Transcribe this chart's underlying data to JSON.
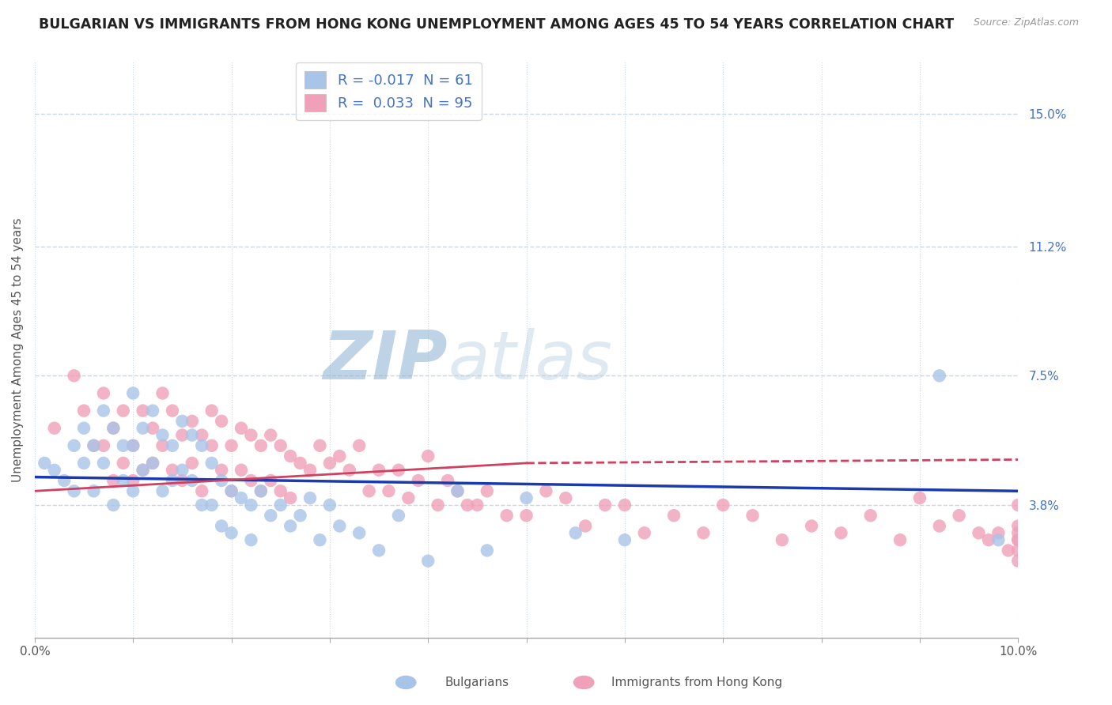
{
  "title": "BULGARIAN VS IMMIGRANTS FROM HONG KONG UNEMPLOYMENT AMONG AGES 45 TO 54 YEARS CORRELATION CHART",
  "source": "Source: ZipAtlas.com",
  "ylabel": "Unemployment Among Ages 45 to 54 years",
  "xlim": [
    0.0,
    0.1
  ],
  "ylim": [
    0.0,
    0.165
  ],
  "yticks": [
    0.038,
    0.075,
    0.112,
    0.15
  ],
  "ytick_labels": [
    "3.8%",
    "7.5%",
    "11.2%",
    "15.0%"
  ],
  "xtick_positions": [
    0.0,
    0.01,
    0.02,
    0.03,
    0.04,
    0.05,
    0.06,
    0.07,
    0.08,
    0.09,
    0.1
  ],
  "xtick_labels": [
    "0.0%",
    "",
    "",
    "",
    "",
    "",
    "",
    "",
    "",
    "",
    "10.0%"
  ],
  "bulgarian_color": "#a8c4e8",
  "hk_color": "#f0a0b8",
  "trend_bulgarian_color": "#1a3aad",
  "trend_hk_color": "#d04060",
  "legend_r_bulgarian": "-0.017",
  "legend_n_bulgarian": "61",
  "legend_r_hk": "0.033",
  "legend_n_hk": "95",
  "watermark_zip": "ZIP",
  "watermark_atlas": "atlas",
  "background_color": "#ffffff",
  "grid_color": "#c8d8e8",
  "title_fontsize": 12.5,
  "axis_label_fontsize": 11,
  "tick_fontsize": 11,
  "bulgarian_x": [
    0.001,
    0.002,
    0.003,
    0.004,
    0.004,
    0.005,
    0.005,
    0.006,
    0.006,
    0.007,
    0.007,
    0.008,
    0.008,
    0.009,
    0.009,
    0.01,
    0.01,
    0.01,
    0.011,
    0.011,
    0.012,
    0.012,
    0.013,
    0.013,
    0.014,
    0.014,
    0.015,
    0.015,
    0.016,
    0.016,
    0.017,
    0.017,
    0.018,
    0.018,
    0.019,
    0.019,
    0.02,
    0.02,
    0.021,
    0.022,
    0.022,
    0.023,
    0.024,
    0.025,
    0.026,
    0.027,
    0.028,
    0.029,
    0.03,
    0.031,
    0.033,
    0.035,
    0.037,
    0.04,
    0.043,
    0.046,
    0.05,
    0.055,
    0.06,
    0.092,
    0.098
  ],
  "bulgarian_y": [
    0.05,
    0.048,
    0.045,
    0.055,
    0.042,
    0.06,
    0.05,
    0.055,
    0.042,
    0.065,
    0.05,
    0.06,
    0.038,
    0.055,
    0.045,
    0.07,
    0.055,
    0.042,
    0.06,
    0.048,
    0.065,
    0.05,
    0.058,
    0.042,
    0.055,
    0.045,
    0.062,
    0.048,
    0.058,
    0.045,
    0.055,
    0.038,
    0.05,
    0.038,
    0.045,
    0.032,
    0.042,
    0.03,
    0.04,
    0.038,
    0.028,
    0.042,
    0.035,
    0.038,
    0.032,
    0.035,
    0.04,
    0.028,
    0.038,
    0.032,
    0.03,
    0.025,
    0.035,
    0.022,
    0.042,
    0.025,
    0.04,
    0.03,
    0.028,
    0.075,
    0.028
  ],
  "hk_x": [
    0.002,
    0.004,
    0.005,
    0.006,
    0.007,
    0.007,
    0.008,
    0.008,
    0.009,
    0.009,
    0.01,
    0.01,
    0.011,
    0.011,
    0.012,
    0.012,
    0.013,
    0.013,
    0.014,
    0.014,
    0.015,
    0.015,
    0.016,
    0.016,
    0.017,
    0.017,
    0.018,
    0.018,
    0.019,
    0.019,
    0.02,
    0.02,
    0.021,
    0.021,
    0.022,
    0.022,
    0.023,
    0.023,
    0.024,
    0.024,
    0.025,
    0.025,
    0.026,
    0.026,
    0.027,
    0.028,
    0.029,
    0.03,
    0.031,
    0.032,
    0.033,
    0.034,
    0.035,
    0.036,
    0.037,
    0.038,
    0.039,
    0.04,
    0.041,
    0.042,
    0.043,
    0.044,
    0.045,
    0.046,
    0.048,
    0.05,
    0.052,
    0.054,
    0.056,
    0.058,
    0.06,
    0.062,
    0.065,
    0.068,
    0.07,
    0.073,
    0.076,
    0.079,
    0.082,
    0.085,
    0.088,
    0.09,
    0.092,
    0.094,
    0.096,
    0.097,
    0.098,
    0.099,
    0.1,
    0.1,
    0.1,
    0.1,
    0.1,
    0.1,
    0.1
  ],
  "hk_y": [
    0.06,
    0.075,
    0.065,
    0.055,
    0.07,
    0.055,
    0.06,
    0.045,
    0.065,
    0.05,
    0.055,
    0.045,
    0.065,
    0.048,
    0.06,
    0.05,
    0.07,
    0.055,
    0.065,
    0.048,
    0.058,
    0.045,
    0.062,
    0.05,
    0.058,
    0.042,
    0.065,
    0.055,
    0.062,
    0.048,
    0.055,
    0.042,
    0.06,
    0.048,
    0.058,
    0.045,
    0.055,
    0.042,
    0.058,
    0.045,
    0.055,
    0.042,
    0.052,
    0.04,
    0.05,
    0.048,
    0.055,
    0.05,
    0.052,
    0.048,
    0.055,
    0.042,
    0.048,
    0.042,
    0.048,
    0.04,
    0.045,
    0.052,
    0.038,
    0.045,
    0.042,
    0.038,
    0.038,
    0.042,
    0.035,
    0.035,
    0.042,
    0.04,
    0.032,
    0.038,
    0.038,
    0.03,
    0.035,
    0.03,
    0.038,
    0.035,
    0.028,
    0.032,
    0.03,
    0.035,
    0.028,
    0.04,
    0.032,
    0.035,
    0.03,
    0.028,
    0.03,
    0.025,
    0.03,
    0.028,
    0.032,
    0.025,
    0.028,
    0.038,
    0.022
  ],
  "trend_bul_x0": 0.0,
  "trend_bul_y0": 0.046,
  "trend_bul_x1": 0.1,
  "trend_bul_y1": 0.042,
  "trend_hk_solid_x0": 0.0,
  "trend_hk_solid_y0": 0.042,
  "trend_hk_solid_x1": 0.05,
  "trend_hk_solid_y1": 0.05,
  "trend_hk_dash_x0": 0.05,
  "trend_hk_dash_y0": 0.05,
  "trend_hk_dash_x1": 0.1,
  "trend_hk_dash_y1": 0.051
}
